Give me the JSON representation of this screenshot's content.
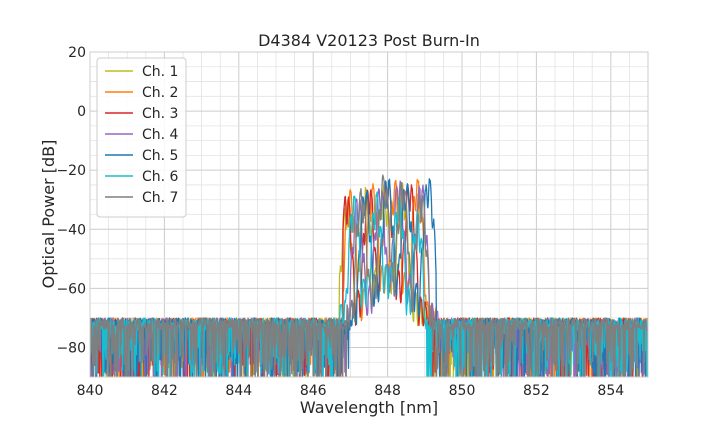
{
  "chart_data": {
    "type": "line",
    "title": "D4384 V20123 Post Burn-In",
    "xlabel": "Wavelength [nm]",
    "ylabel": "Optical Power [dB]",
    "xlim": [
      840,
      855
    ],
    "ylim": [
      -90,
      20
    ],
    "xticks": [
      840,
      842,
      844,
      846,
      848,
      850,
      852,
      854
    ],
    "yticks": [
      20,
      0,
      -20,
      -40,
      -60,
      -80
    ],
    "xtick_labels": [
      "840",
      "842",
      "844",
      "846",
      "848",
      "850",
      "852",
      "854"
    ],
    "ytick_labels": [
      "20",
      "0",
      "−20",
      "−40",
      "−60",
      "−80"
    ],
    "grid": true,
    "legend_position": "top-left",
    "noise_floor_db": -72,
    "series": [
      {
        "name": "Ch. 1",
        "color": "#bcbd22",
        "peak_x": [
          846.9,
          847.4,
          847.9,
          848.4
        ],
        "peak_y": [
          -30,
          -26,
          -25,
          -25
        ],
        "band": [
          846.7,
          849.2
        ]
      },
      {
        "name": "Ch. 2",
        "color": "#ff7f0e",
        "peak_x": [
          847.0,
          847.6,
          848.2,
          848.8
        ],
        "peak_y": [
          -27,
          -25,
          -24,
          -23
        ],
        "band": [
          846.8,
          849.3
        ]
      },
      {
        "name": "Ch. 3",
        "color": "#d62728",
        "peak_x": [
          846.9,
          847.5,
          848.0,
          848.6
        ],
        "peak_y": [
          -28,
          -25,
          -23,
          -24
        ],
        "band": [
          846.8,
          849.1
        ]
      },
      {
        "name": "Ch. 4",
        "color": "#9467bd",
        "peak_x": [
          847.2,
          847.8,
          848.3,
          848.9
        ],
        "peak_y": [
          -28,
          -25,
          -23,
          -24
        ],
        "band": [
          846.9,
          849.4
        ]
      },
      {
        "name": "Ch. 5",
        "color": "#1f77b4",
        "peak_x": [
          847.4,
          848.0,
          848.5,
          849.1
        ],
        "peak_y": [
          -26,
          -22,
          -24,
          -22
        ],
        "band": [
          847.0,
          849.3
        ]
      },
      {
        "name": "Ch. 6",
        "color": "#17becf",
        "peak_x": [
          847.1,
          847.7,
          848.3,
          848.8
        ],
        "peak_y": [
          -29,
          -28,
          -29,
          -34
        ],
        "band": [
          846.7,
          849.0
        ]
      },
      {
        "name": "Ch. 7",
        "color": "#7f7f7f",
        "peak_x": [
          847.3,
          847.9,
          848.4,
          848.9
        ],
        "peak_y": [
          -27,
          -22,
          -23,
          -27
        ],
        "band": [
          846.9,
          849.2
        ]
      }
    ]
  }
}
